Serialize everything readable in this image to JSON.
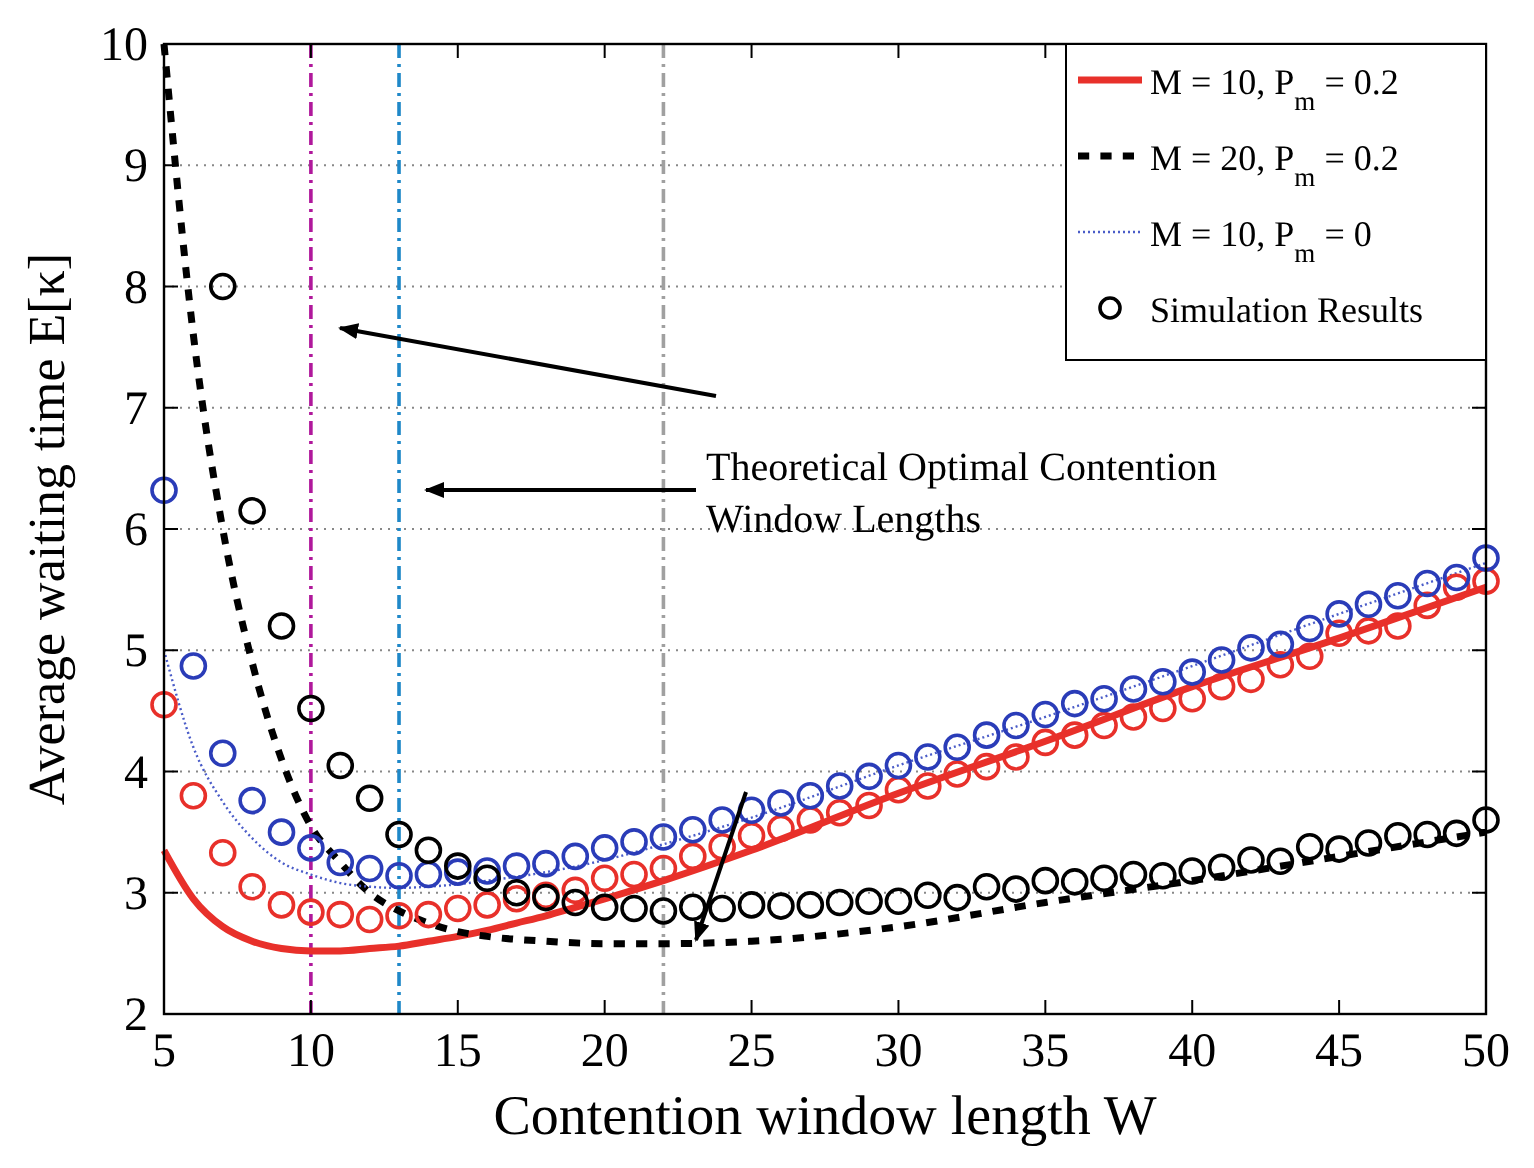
{
  "chart_data": {
    "type": "line",
    "xlabel": "Contention window length W",
    "ylabel": "Average waiting time E[κ]",
    "xlim": [
      5,
      50
    ],
    "xticks": [
      5,
      10,
      15,
      20,
      25,
      30,
      35,
      40,
      45,
      50
    ],
    "ylim": [
      2,
      10
    ],
    "yticks": [
      2,
      3,
      4,
      5,
      6,
      7,
      8,
      9,
      10
    ],
    "grid": "y",
    "legend": "top right",
    "series": [
      {
        "name": "M = 10, P$_{m}$ = 0.2",
        "color": "#e8302a",
        "line_style": "solid",
        "marker": "none",
        "x": [
          5,
          6,
          7,
          8,
          9,
          10,
          11,
          12,
          13,
          14,
          15,
          16,
          17,
          18,
          19,
          20,
          22,
          25,
          30,
          35,
          40,
          45,
          50
        ],
        "values": [
          3.35,
          2.95,
          2.72,
          2.6,
          2.54,
          2.52,
          2.52,
          2.54,
          2.56,
          2.6,
          2.64,
          2.69,
          2.75,
          2.81,
          2.88,
          2.95,
          3.1,
          3.35,
          3.82,
          4.25,
          4.7,
          5.1,
          5.52
        ]
      },
      {
        "name": "M = 20, P$_{m}$ = 0.2",
        "color": "#000000",
        "line_style": "dashed",
        "marker": "none",
        "x": [
          5,
          6,
          7,
          8,
          9,
          10,
          11,
          12,
          13,
          14,
          15,
          16,
          18,
          20,
          22,
          25,
          30,
          35,
          40,
          45,
          50
        ],
        "values": [
          10,
          7.6,
          6.0,
          4.9,
          4.1,
          3.55,
          3.25,
          3.0,
          2.85,
          2.75,
          2.68,
          2.64,
          2.6,
          2.58,
          2.58,
          2.6,
          2.72,
          2.92,
          3.1,
          3.3,
          3.5
        ]
      },
      {
        "name": "M = 10, P$_{m}$ = 0",
        "color": "#4a5cc8",
        "line_style": "dotted",
        "marker": "none",
        "x": [
          5,
          6,
          7,
          8,
          9,
          10,
          11,
          12,
          13,
          14,
          15,
          16,
          18,
          20,
          22,
          25,
          30,
          35,
          40,
          45,
          50
        ],
        "values": [
          5.0,
          4.2,
          3.75,
          3.45,
          3.25,
          3.15,
          3.08,
          3.05,
          3.04,
          3.05,
          3.07,
          3.1,
          3.17,
          3.27,
          3.4,
          3.62,
          4.05,
          4.45,
          4.87,
          5.3,
          5.72
        ]
      },
      {
        "type": "scatter",
        "color": "#e8302a",
        "marker": "circle",
        "x": [
          5,
          6,
          7,
          8,
          9,
          10,
          11,
          12,
          13,
          14,
          15,
          16,
          17,
          18,
          19,
          20,
          21,
          22,
          23,
          24,
          25,
          26,
          27,
          28,
          29,
          30,
          31,
          32,
          33,
          34,
          35,
          36,
          37,
          38,
          39,
          40,
          41,
          42,
          43,
          44,
          45,
          46,
          47,
          48,
          49,
          50
        ],
        "values": [
          4.55,
          3.8,
          3.33,
          3.05,
          2.9,
          2.84,
          2.82,
          2.78,
          2.81,
          2.82,
          2.87,
          2.9,
          2.95,
          2.98,
          3.02,
          3.12,
          3.15,
          3.2,
          3.3,
          3.38,
          3.47,
          3.53,
          3.6,
          3.66,
          3.72,
          3.85,
          3.88,
          3.98,
          4.04,
          4.12,
          4.24,
          4.3,
          4.38,
          4.45,
          4.52,
          4.6,
          4.7,
          4.76,
          4.88,
          4.95,
          5.14,
          5.16,
          5.2,
          5.37,
          5.52,
          5.57
        ]
      },
      {
        "type": "scatter",
        "color": "#2a3cb8",
        "marker": "circle",
        "x": [
          5,
          6,
          7,
          8,
          9,
          10,
          11,
          12,
          13,
          14,
          15,
          16,
          17,
          18,
          19,
          20,
          21,
          22,
          23,
          24,
          25,
          26,
          27,
          28,
          29,
          30,
          31,
          32,
          33,
          34,
          35,
          36,
          37,
          38,
          39,
          40,
          41,
          42,
          43,
          44,
          45,
          46,
          47,
          48,
          49,
          50
        ],
        "values": [
          6.32,
          4.87,
          4.15,
          3.76,
          3.5,
          3.37,
          3.25,
          3.2,
          3.14,
          3.15,
          3.17,
          3.18,
          3.22,
          3.24,
          3.3,
          3.37,
          3.42,
          3.46,
          3.52,
          3.6,
          3.68,
          3.74,
          3.8,
          3.88,
          3.96,
          4.05,
          4.12,
          4.2,
          4.3,
          4.38,
          4.47,
          4.56,
          4.6,
          4.68,
          4.74,
          4.82,
          4.92,
          5.02,
          5.05,
          5.18,
          5.3,
          5.38,
          5.45,
          5.55,
          5.6,
          5.76
        ]
      },
      {
        "name": "Simulation Results",
        "type": "scatter",
        "color": "#000000",
        "marker": "circle",
        "x": [
          7,
          8,
          9,
          10,
          11,
          12,
          13,
          14,
          15,
          16,
          17,
          18,
          19,
          20,
          21,
          22,
          23,
          24,
          25,
          26,
          27,
          28,
          29,
          30,
          31,
          32,
          33,
          34,
          35,
          36,
          37,
          38,
          39,
          40,
          41,
          42,
          43,
          44,
          45,
          46,
          47,
          48,
          49,
          50
        ],
        "values": [
          8.0,
          6.15,
          5.2,
          4.52,
          4.05,
          3.78,
          3.48,
          3.35,
          3.22,
          3.12,
          3.0,
          2.96,
          2.92,
          2.88,
          2.87,
          2.85,
          2.88,
          2.87,
          2.9,
          2.89,
          2.9,
          2.92,
          2.93,
          2.93,
          2.98,
          2.96,
          3.05,
          3.03,
          3.1,
          3.09,
          3.12,
          3.15,
          3.14,
          3.18,
          3.21,
          3.27,
          3.26,
          3.38,
          3.36,
          3.41,
          3.47,
          3.48,
          3.49,
          3.6
        ]
      }
    ],
    "ref_lines": [
      {
        "axis": "x",
        "value": 10,
        "color": "#b0189b",
        "line_style": "dashdot"
      },
      {
        "axis": "x",
        "value": 13,
        "color": "#1f88c8",
        "line_style": "dashdot"
      },
      {
        "axis": "x",
        "value": 22,
        "color": "#a0a0a0",
        "line_style": "dashdot"
      }
    ],
    "annotations": [
      "Theoretical Optimal Contention\nWindow Lengths"
    ]
  }
}
